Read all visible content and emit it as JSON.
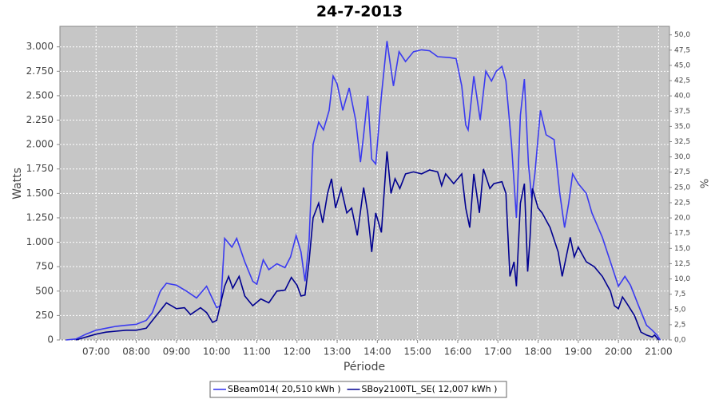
{
  "chart_data": {
    "type": "line",
    "title": "24-7-2013",
    "xlabel": "Période",
    "ylabel": "Watts",
    "y2label": "%",
    "xlim": [
      6.1,
      21.27
    ],
    "ylim": [
      0,
      3210
    ],
    "y2lim": [
      0,
      51.4
    ],
    "grid": true,
    "legend": "bottom",
    "xticks": [
      {
        "value": 7,
        "label": "07:00"
      },
      {
        "value": 8,
        "label": "08:00"
      },
      {
        "value": 9,
        "label": "09:00"
      },
      {
        "value": 10,
        "label": "10:00"
      },
      {
        "value": 11,
        "label": "11:00"
      },
      {
        "value": 12,
        "label": "12:00"
      },
      {
        "value": 13,
        "label": "13:00"
      },
      {
        "value": 14,
        "label": "14:00"
      },
      {
        "value": 15,
        "label": "15:00"
      },
      {
        "value": 16,
        "label": "16:00"
      },
      {
        "value": 17,
        "label": "17:00"
      },
      {
        "value": 18,
        "label": "18:00"
      },
      {
        "value": 19,
        "label": "19:00"
      },
      {
        "value": 20,
        "label": "20:00"
      },
      {
        "value": 21,
        "label": "21:00"
      }
    ],
    "yticks": [
      0,
      250,
      500,
      750,
      {
        "value": 1000,
        "label": "1.000"
      },
      {
        "value": 1250,
        "label": "1.250"
      },
      {
        "value": 1500,
        "label": "1.500"
      },
      {
        "value": 1750,
        "label": "1.750"
      },
      {
        "value": 2000,
        "label": "2.000"
      },
      {
        "value": 2250,
        "label": "2.250"
      },
      {
        "value": 2500,
        "label": "2.500"
      },
      {
        "value": 2750,
        "label": "2.750"
      },
      {
        "value": 3000,
        "label": "3.000"
      }
    ],
    "y2ticks": [
      {
        "value": 0,
        "label": "0,0"
      },
      {
        "value": 2.5,
        "label": "2,5"
      },
      {
        "value": 5,
        "label": "5,0"
      },
      {
        "value": 7.5,
        "label": "7,5"
      },
      {
        "value": 10,
        "label": "10,0"
      },
      {
        "value": 12.5,
        "label": "12,5"
      },
      {
        "value": 15,
        "label": "15,0"
      },
      {
        "value": 17.5,
        "label": "17,5"
      },
      {
        "value": 20,
        "label": "20,0"
      },
      {
        "value": 22.5,
        "label": "22,5"
      },
      {
        "value": 25,
        "label": "25,0"
      },
      {
        "value": 27.5,
        "label": "27,5"
      },
      {
        "value": 30,
        "label": "30,0"
      },
      {
        "value": 32.5,
        "label": "32,5"
      },
      {
        "value": 35,
        "label": "35,0"
      },
      {
        "value": 37.5,
        "label": "37,5"
      },
      {
        "value": 40,
        "label": "40,0"
      },
      {
        "value": 42.5,
        "label": "42,5"
      },
      {
        "value": 45,
        "label": "45,0"
      },
      {
        "value": 47.5,
        "label": "47,5"
      },
      {
        "value": 50,
        "label": "50,0"
      }
    ],
    "series": [
      {
        "name": "SBeam014( 20,510 kWh )",
        "color": "#3a3af0",
        "x": [
          6.25,
          6.5,
          6.75,
          7.0,
          7.25,
          7.5,
          7.75,
          8.0,
          8.25,
          8.4,
          8.6,
          8.75,
          9.0,
          9.25,
          9.5,
          9.75,
          10.0,
          10.1,
          10.2,
          10.38,
          10.5,
          10.7,
          10.9,
          11.0,
          11.16,
          11.3,
          11.5,
          11.7,
          11.84,
          11.98,
          12.1,
          12.2,
          12.3,
          12.4,
          12.54,
          12.66,
          12.8,
          12.9,
          13.0,
          13.14,
          13.3,
          13.46,
          13.58,
          13.66,
          13.76,
          13.86,
          13.96,
          14.1,
          14.24,
          14.4,
          14.54,
          14.7,
          14.9,
          15.1,
          15.3,
          15.5,
          15.8,
          15.96,
          16.1,
          16.2,
          16.26,
          16.4,
          16.56,
          16.7,
          16.84,
          16.96,
          17.1,
          17.2,
          17.34,
          17.46,
          17.56,
          17.66,
          17.76,
          17.84,
          17.92,
          18.06,
          18.2,
          18.4,
          18.54,
          18.66,
          18.76,
          18.86,
          19.0,
          19.2,
          19.34,
          19.6,
          19.8,
          20.0,
          20.16,
          20.3,
          20.5,
          20.7,
          20.84,
          20.96,
          21.04
        ],
        "values": [
          0,
          10,
          60,
          100,
          120,
          140,
          150,
          160,
          200,
          280,
          500,
          580,
          560,
          500,
          430,
          550,
          330,
          350,
          1040,
          950,
          1040,
          800,
          600,
          570,
          820,
          720,
          780,
          740,
          850,
          1070,
          900,
          600,
          1000,
          2000,
          2230,
          2150,
          2350,
          2700,
          2620,
          2350,
          2580,
          2250,
          1820,
          2100,
          2500,
          1850,
          1800,
          2500,
          3060,
          2600,
          2950,
          2850,
          2950,
          2970,
          2960,
          2900,
          2890,
          2880,
          2600,
          2200,
          2150,
          2700,
          2250,
          2750,
          2650,
          2750,
          2800,
          2650,
          2000,
          1250,
          2300,
          2670,
          1800,
          1450,
          1700,
          2350,
          2100,
          2050,
          1500,
          1150,
          1400,
          1700,
          1600,
          1500,
          1300,
          1050,
          800,
          550,
          650,
          560,
          350,
          150,
          100,
          50,
          0
        ]
      },
      {
        "name": "SBoy2100TL_SE( 12,007 kWh )",
        "color": "#000090",
        "x": [
          6.5,
          7.0,
          7.25,
          7.5,
          7.75,
          8.0,
          8.25,
          8.5,
          8.75,
          9.0,
          9.2,
          9.35,
          9.6,
          9.75,
          9.9,
          10.0,
          10.2,
          10.3,
          10.4,
          10.56,
          10.7,
          10.9,
          11.1,
          11.3,
          11.5,
          11.7,
          11.86,
          12.0,
          12.1,
          12.2,
          12.3,
          12.4,
          12.54,
          12.64,
          12.76,
          12.86,
          12.96,
          13.1,
          13.24,
          13.36,
          13.5,
          13.66,
          13.76,
          13.86,
          13.96,
          14.1,
          14.24,
          14.34,
          14.44,
          14.56,
          14.7,
          14.9,
          15.1,
          15.3,
          15.5,
          15.6,
          15.7,
          15.9,
          16.1,
          16.2,
          16.3,
          16.4,
          16.54,
          16.64,
          16.8,
          16.9,
          17.1,
          17.2,
          17.3,
          17.4,
          17.46,
          17.56,
          17.66,
          17.74,
          17.8,
          17.86,
          18.0,
          18.1,
          18.3,
          18.5,
          18.6,
          18.8,
          18.9,
          19.0,
          19.2,
          19.4,
          19.6,
          19.8,
          19.9,
          20.0,
          20.1,
          20.2,
          20.4,
          20.56,
          20.7,
          20.84,
          20.9,
          21.0
        ],
        "values": [
          0,
          60,
          80,
          90,
          100,
          100,
          120,
          250,
          380,
          320,
          330,
          260,
          330,
          280,
          180,
          200,
          550,
          650,
          530,
          650,
          450,
          350,
          420,
          380,
          500,
          510,
          640,
          560,
          450,
          460,
          800,
          1250,
          1400,
          1200,
          1500,
          1650,
          1350,
          1550,
          1300,
          1350,
          1070,
          1560,
          1300,
          900,
          1300,
          1100,
          1930,
          1500,
          1650,
          1550,
          1700,
          1720,
          1700,
          1740,
          1720,
          1580,
          1700,
          1600,
          1700,
          1350,
          1150,
          1700,
          1300,
          1750,
          1550,
          1600,
          1620,
          1500,
          650,
          800,
          550,
          1400,
          1600,
          700,
          1050,
          1550,
          1350,
          1300,
          1150,
          900,
          650,
          1050,
          850,
          950,
          800,
          750,
          650,
          500,
          350,
          320,
          440,
          380,
          250,
          80,
          50,
          30,
          50,
          0
        ]
      }
    ]
  }
}
